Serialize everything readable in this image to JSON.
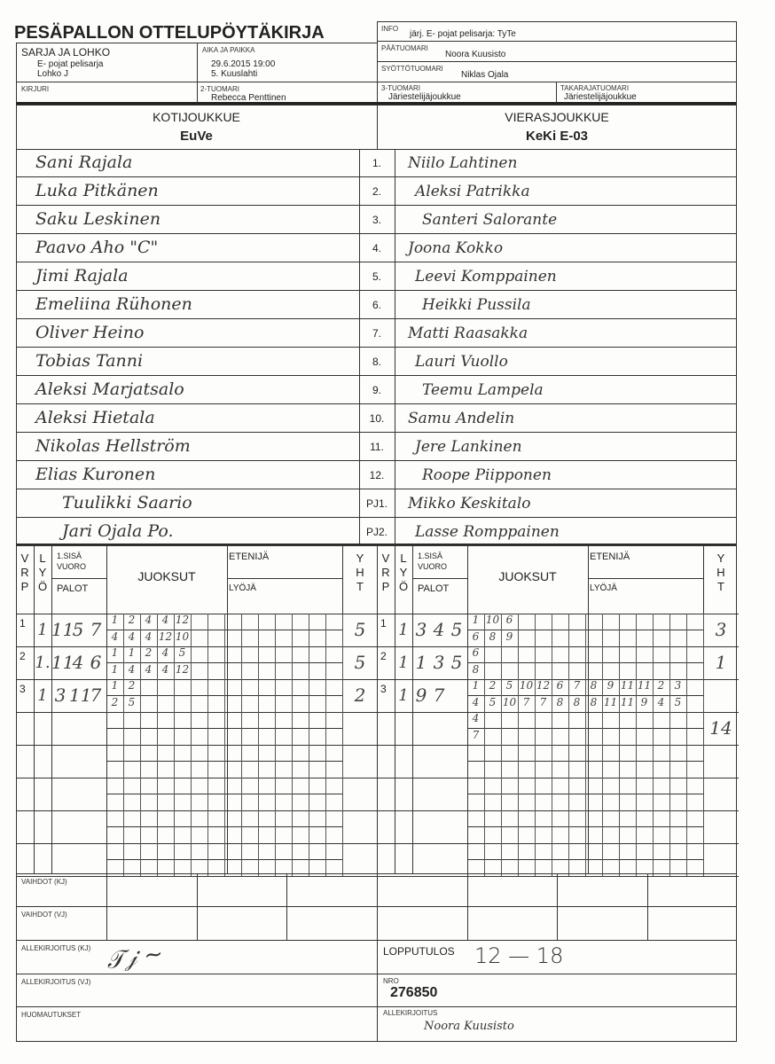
{
  "title": "PESÄPALLON OTTELUPÖYTÄKIRJA",
  "header": {
    "sarja_label": "SARJA JA LOHKO",
    "sarja_line1": "E- pojat pelisarja",
    "sarja_line2": "Lohko J",
    "aika_label": "AIKA JA PAIKKA",
    "aika_line1": "29.6.2015 19:00",
    "aika_line2": "5. Kuuslahti",
    "kirjuri_label": "KIRJURI",
    "tuomari2_label": "2-TUOMARI",
    "tuomari2": "Rebecca Penttinen",
    "info_label": "INFO",
    "info": "järj. E- pojat pelisarja: TyTe",
    "paatuomari_label": "PÄÄTUOMARI",
    "paatuomari": "Noora Kuusisto",
    "syotto_label": "SYÖTTÖTUOMARI",
    "syotto": "Niklas Ojala",
    "tuomari3_label": "3-TUOMARI",
    "tuomari3": "Järiestelijäjoukkue",
    "takaraja_label": "TAKARAJATUOMARI",
    "takaraja": "Järiestelijäjoukkue"
  },
  "home": {
    "label": "KOTIJOUKKUE",
    "name": "EuVe"
  },
  "away": {
    "label": "VIERASJOUKKUE",
    "name": "KeKi E-03"
  },
  "players": [
    {
      "no": "1.",
      "home": "Sani Rajala",
      "away": "Niilo Lahtinen"
    },
    {
      "no": "2.",
      "home": "Luka Pitkänen",
      "away": "Aleksi Patrikka"
    },
    {
      "no": "3.",
      "home": "Saku Leskinen",
      "away": "Santeri Salorante"
    },
    {
      "no": "4.",
      "home": "Paavo Aho \"C\"",
      "away": "Joona Kokko"
    },
    {
      "no": "5.",
      "home": "Jimi Rajala",
      "away": "Leevi Komppainen"
    },
    {
      "no": "6.",
      "home": "Emeliina Rühonen",
      "away": "Heikki Pussila"
    },
    {
      "no": "7.",
      "home": "Oliver Heino",
      "away": "Matti Raasakka"
    },
    {
      "no": "8.",
      "home": "Tobias Tanni",
      "away": "Lauri Vuollo"
    },
    {
      "no": "9.",
      "home": "Aleksi Marjatsalo",
      "away": "Teemu Lampela"
    },
    {
      "no": "10.",
      "home": "Aleksi Hietala",
      "away": "Samu Andelin"
    },
    {
      "no": "11.",
      "home": "Nikolas Hellström",
      "away": "Jere Lankinen"
    },
    {
      "no": "12.",
      "home": "Elias Kuronen",
      "away": "Roope Piipponen"
    },
    {
      "no": "PJ1.",
      "home": "Tuulikki Saario",
      "away": "Mikko Keskitalo"
    },
    {
      "no": "PJ2.",
      "home": "Jari Ojala Po.",
      "away": "Lasse Romppainen"
    }
  ],
  "score_headers": {
    "v": "V",
    "r": "R",
    "p": "P",
    "l": "L",
    "y": "Y",
    "o": "Ö",
    "sisa": "1.SISÄ",
    "vuoro": "VUORO",
    "palot": "PALOT",
    "juoksut": "JUOKSUT",
    "etenija": "ETENIJÄ",
    "lyoja": "LYÖJÄ",
    "yh": "Y",
    "yh2": "H",
    "yh3": "T"
  },
  "innings_home": [
    {
      "vrp": "1",
      "lyo": "1",
      "palot": [
        "11",
        "5",
        "7"
      ],
      "top": [
        "1",
        "2",
        "4",
        "4",
        "12"
      ],
      "bottom": [
        "4",
        "4",
        "4",
        "12",
        "10"
      ],
      "yht": "5"
    },
    {
      "vrp": "2",
      "lyo": "1.",
      "palot": [
        "11",
        "4",
        "6"
      ],
      "top": [
        "1",
        "1",
        "2",
        "4",
        "5"
      ],
      "bottom": [
        "1",
        "4",
        "4",
        "4",
        "12"
      ],
      "yht": "5"
    },
    {
      "vrp": "3",
      "lyo": "1",
      "palot": [
        "3",
        "11",
        "7"
      ],
      "top": [
        "1",
        "2"
      ],
      "bottom": [
        "2",
        "5"
      ],
      "yht": "2"
    }
  ],
  "innings_away": [
    {
      "vrp": "1",
      "lyo": "1",
      "palot": [
        "3",
        "4",
        "5"
      ],
      "top": [
        "1",
        "10",
        "6"
      ],
      "bottom": [
        "6",
        "8",
        "9"
      ],
      "yht": "3"
    },
    {
      "vrp": "2",
      "lyo": "1",
      "palot": [
        "1",
        "3",
        "5"
      ],
      "top": [
        "6"
      ],
      "bottom": [
        "8"
      ],
      "yht": "1"
    },
    {
      "vrp": "3",
      "lyo": "1",
      "palot": [
        "9",
        "7",
        ""
      ],
      "top": [
        "1",
        "2",
        "5",
        "10",
        "12",
        "6",
        "7",
        "8",
        "9",
        "11",
        "11",
        "2",
        "3"
      ],
      "bottom": [
        "4",
        "5",
        "10",
        "7",
        "7",
        "8",
        "8",
        "8",
        "11",
        "11",
        "9",
        "4",
        "5"
      ],
      "yht": ""
    },
    {
      "vrp": "",
      "lyo": "",
      "palot": [
        "",
        "",
        ""
      ],
      "top": [
        "4"
      ],
      "bottom": [
        "7"
      ],
      "yht": "14"
    }
  ],
  "footer": {
    "vaihdot_kj": "VAIHDOT (KJ)",
    "vaihdot_vj": "VAIHDOT (VJ)",
    "allek_kj": "ALLEKIRJOITUS (KJ)",
    "allek_vj": "ALLEKIRJOITUS (VJ)",
    "huom": "HUOMAUTUKSET",
    "lopputulos_label": "LOPPUTULOS",
    "lopputulos": "12 — 18",
    "nro_label": "NRO",
    "nro": "276850",
    "allek_label": "ALLEKIRJOITUS",
    "allek_sign": "Noora Kuusisto"
  }
}
